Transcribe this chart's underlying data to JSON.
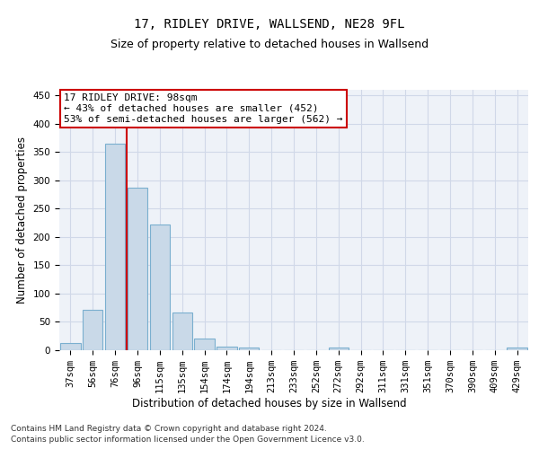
{
  "title_line1": "17, RIDLEY DRIVE, WALLSEND, NE28 9FL",
  "title_line2": "Size of property relative to detached houses in Wallsend",
  "xlabel": "Distribution of detached houses by size in Wallsend",
  "ylabel": "Number of detached properties",
  "categories": [
    "37sqm",
    "56sqm",
    "76sqm",
    "96sqm",
    "115sqm",
    "135sqm",
    "154sqm",
    "174sqm",
    "194sqm",
    "213sqm",
    "233sqm",
    "252sqm",
    "272sqm",
    "292sqm",
    "311sqm",
    "331sqm",
    "351sqm",
    "370sqm",
    "390sqm",
    "409sqm",
    "429sqm"
  ],
  "values": [
    12,
    72,
    365,
    287,
    222,
    67,
    20,
    7,
    5,
    0,
    0,
    0,
    4,
    0,
    0,
    0,
    0,
    0,
    0,
    0,
    4
  ],
  "bar_color": "#c9d9e8",
  "bar_edge_color": "#7aafcf",
  "bar_edge_width": 0.8,
  "vline_x": 2.5,
  "vline_color": "#cc0000",
  "annotation_line1": "17 RIDLEY DRIVE: 98sqm",
  "annotation_line2": "← 43% of detached houses are smaller (452)",
  "annotation_line3": "53% of semi-detached houses are larger (562) →",
  "annotation_box_color": "white",
  "annotation_box_edge_color": "#cc0000",
  "ylim": [
    0,
    460
  ],
  "yticks": [
    0,
    50,
    100,
    150,
    200,
    250,
    300,
    350,
    400,
    450
  ],
  "grid_color": "#d0d8e8",
  "background_color": "#eef2f8",
  "footnote_line1": "Contains HM Land Registry data © Crown copyright and database right 2024.",
  "footnote_line2": "Contains public sector information licensed under the Open Government Licence v3.0.",
  "title_fontsize": 10,
  "subtitle_fontsize": 9,
  "axis_label_fontsize": 8.5,
  "tick_fontsize": 7.5,
  "annotation_fontsize": 8,
  "footnote_fontsize": 6.5
}
